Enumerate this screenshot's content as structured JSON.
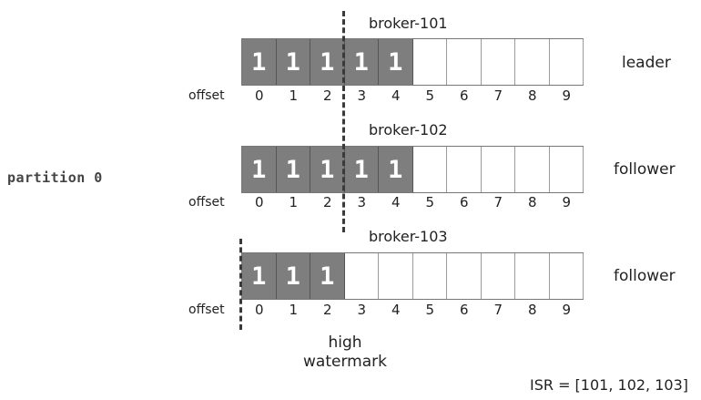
{
  "partition": "partition 0",
  "offset_label": "offset",
  "brokers": [
    {
      "name": "broker-101",
      "role": "leader",
      "cells": [
        "1",
        "1",
        "1",
        "1",
        "1",
        "",
        "",
        "",
        "",
        ""
      ],
      "offsets": [
        "0",
        "1",
        "2",
        "3",
        "4",
        "5",
        "6",
        "7",
        "8",
        "9"
      ]
    },
    {
      "name": "broker-102",
      "role": "follower",
      "cells": [
        "1",
        "1",
        "1",
        "1",
        "1",
        "",
        "",
        "",
        "",
        ""
      ],
      "offsets": [
        "0",
        "1",
        "2",
        "3",
        "4",
        "5",
        "6",
        "7",
        "8",
        "9"
      ]
    },
    {
      "name": "broker-103",
      "role": "follower",
      "cells": [
        "1",
        "1",
        "1",
        "",
        "",
        "",
        "",
        "",
        "",
        ""
      ],
      "offsets": [
        "0",
        "1",
        "2",
        "3",
        "4",
        "5",
        "6",
        "7",
        "8",
        "9"
      ]
    }
  ],
  "high_watermark": {
    "line1": "high",
    "line2": "watermark"
  },
  "isr": "ISR = [101, 102, 103]"
}
